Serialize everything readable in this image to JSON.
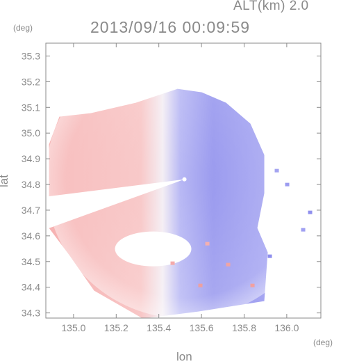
{
  "header": {
    "altitude": "ALT(km) 2.0",
    "timestamp": "2013/09/16 00:09:59"
  },
  "chart_data": {
    "type": "heatmap",
    "title": "2013/09/16 00:09:59",
    "subtitle": "ALT(km) 2.0",
    "xlabel": "lon",
    "ylabel": "lat",
    "x_unit": "(deg)",
    "y_unit": "(deg)",
    "xlim": [
      134.87,
      136.16
    ],
    "ylim": [
      34.28,
      35.35
    ],
    "x_ticks": [
      135.0,
      135.2,
      135.4,
      135.6,
      135.8,
      136.0
    ],
    "x_tick_labels": [
      "135.0",
      "135.2",
      "135.4",
      "135.6",
      "135.8",
      "136.0"
    ],
    "y_ticks": [
      34.3,
      34.4,
      34.5,
      34.6,
      34.7,
      34.8,
      34.9,
      35.0,
      35.1,
      35.2,
      35.3
    ],
    "y_tick_labels": [
      "34.3",
      "34.4",
      "34.5",
      "34.6",
      "34.7",
      "34.8",
      "34.9",
      "35.0",
      "35.1",
      "35.2",
      "35.3"
    ],
    "radar_center": {
      "lon": 135.52,
      "lat": 34.82
    },
    "colors": {
      "positive": "#f4a8a8",
      "negative": "#8c8cf0",
      "zero": "#f2f2fa",
      "axis": "#8a8a8a"
    }
  }
}
